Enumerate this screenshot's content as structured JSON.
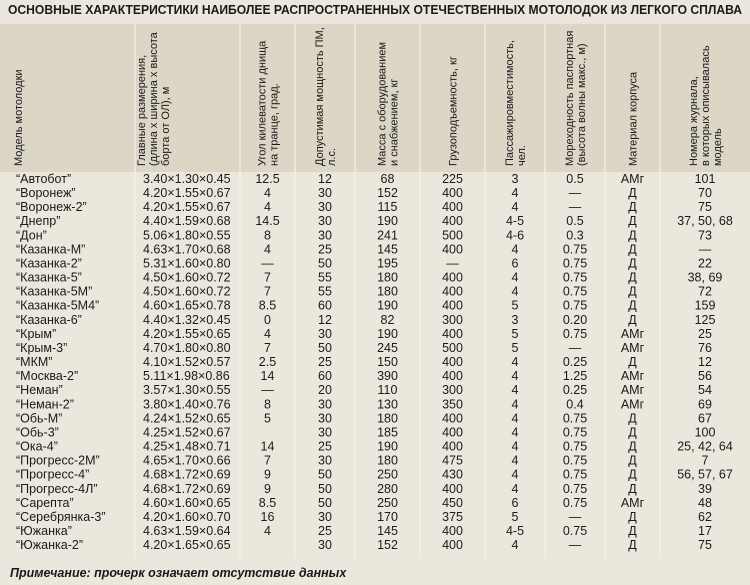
{
  "title": "ОСНОВНЫЕ ХАРАКТЕРИСТИКИ НАИБОЛЕЕ РАСПРОСТРАНЕННЫХ ОТЕЧЕСТВЕННЫХ МОТОЛОДОК ИЗ ЛЕГКОГО СПЛАВА",
  "table": {
    "columns": [
      [
        "Модель мотолодки"
      ],
      [
        "Главные размерения,",
        "(длина х ширина х высота",
        "борта от ОЛ), м"
      ],
      [
        "Угол килеватости днища",
        "на транце, град."
      ],
      [
        "Допустимая мощность ПМ,",
        "л.с."
      ],
      [
        "Масса с оборудованием",
        "и снабжением, кг"
      ],
      [
        "Грузоподъемность, кг"
      ],
      [
        "Пассажировместимость,",
        "чел."
      ],
      [
        "Мореходность паспортная",
        "(высота волны макс., м)"
      ],
      [
        "Материал корпуса"
      ],
      [
        "Номера журнала,",
        "в которых описывалась",
        "модель"
      ]
    ],
    "rows": [
      [
        "“Автобот”",
        "3.40×1.30×0.45",
        "12.5",
        "12",
        "68",
        "225",
        "3",
        "0.5",
        "АМг",
        "101"
      ],
      [
        "“Воронеж”",
        "4.20×1.55×0.67",
        "4",
        "30",
        "152",
        "400",
        "4",
        "—",
        "Д",
        "70"
      ],
      [
        "“Воронеж-2”",
        "4.20×1.55×0.67",
        "4",
        "30",
        "115",
        "400",
        "4",
        "—",
        "Д",
        "75"
      ],
      [
        "“Днепр”",
        "4.40×1.59×0.68",
        "14.5",
        "30",
        "190",
        "400",
        "4-5",
        "0.5",
        "Д",
        "37, 50, 68"
      ],
      [
        "“Дон”",
        "5.06×1.80×0.55",
        "8",
        "30",
        "241",
        "500",
        "4-6",
        "0.3",
        "Д",
        "73"
      ],
      [
        "“Казанка-М”",
        "4.63×1.70×0.68",
        "4",
        "25",
        "145",
        "400",
        "4",
        "0.75",
        "Д",
        "—"
      ],
      [
        "“Казанка-2”",
        "5.31×1.60×0.80",
        "—",
        "50",
        "195",
        "—",
        "6",
        "0.75",
        "Д",
        "22"
      ],
      [
        "“Казанка-5”",
        "4.50×1.60×0.72",
        "7",
        "55",
        "180",
        "400",
        "4",
        "0.75",
        "Д",
        "38, 69"
      ],
      [
        "“Казанка-5М”",
        "4.50×1.60×0.72",
        "7",
        "55",
        "180",
        "400",
        "4",
        "0.75",
        "Д",
        "72"
      ],
      [
        "“Казанка-5М4”",
        "4.60×1.65×0.78",
        "8.5",
        "60",
        "190",
        "400",
        "5",
        "0.75",
        "Д",
        "159"
      ],
      [
        "“Казанка-6”",
        "4.40×1.32×0.45",
        "0",
        "12",
        "82",
        "300",
        "3",
        "0.20",
        "Д",
        "125"
      ],
      [
        "“Крым”",
        "4.20×1.55×0.65",
        "4",
        "30",
        "190",
        "400",
        "5",
        "0.75",
        "АМг",
        "25"
      ],
      [
        "“Крым-3”",
        "4.70×1.80×0.80",
        "7",
        "50",
        "245",
        "500",
        "5",
        "—",
        "АМг",
        "76"
      ],
      [
        "“МКМ”",
        "4.10×1.52×0.57",
        "2.5",
        "25",
        "150",
        "400",
        "4",
        "0.25",
        "Д",
        "12"
      ],
      [
        "“Москва-2”",
        "5.11×1.98×0.86",
        "14",
        "60",
        "390",
        "400",
        "4",
        "1.25",
        "АМг",
        "56"
      ],
      [
        "“Неман”",
        "3.57×1.30×0.55",
        "—",
        "20",
        "110",
        "300",
        "4",
        "0.25",
        "АМг",
        "54"
      ],
      [
        "“Неман-2”",
        "3.80×1.40×0.76",
        "8",
        "30",
        "130",
        "350",
        "4",
        "0.4",
        "АМг",
        "69"
      ],
      [
        "“Обь-М”",
        "4.24×1.52×0.65",
        "5",
        "30",
        "180",
        "400",
        "4",
        "0.75",
        "Д",
        "67"
      ],
      [
        "“Обь-3”",
        "4.25×1.52×0.67",
        null,
        "30",
        "185",
        "400",
        "4",
        "0.75",
        "Д",
        "100"
      ],
      [
        "“Ока-4”",
        "4.25×1.48×0.71",
        "14",
        "25",
        "190",
        "400",
        "4",
        "0.75",
        "Д",
        "25, 42, 64"
      ],
      [
        "“Прогресс-2М”",
        "4.65×1.70×0.66",
        "7",
        "30",
        "180",
        "475",
        "4",
        "0.75",
        "Д",
        "7"
      ],
      [
        "“Прогресс-4”",
        "4.68×1.72×0.69",
        "9",
        "50",
        "250",
        "430",
        "4",
        "0.75",
        "Д",
        "56, 57, 67"
      ],
      [
        "“Прогресс-4Л”",
        "4.68×1.72×0.69",
        "9",
        "50",
        "280",
        "400",
        "4",
        "0.75",
        "Д",
        "39"
      ],
      [
        "“Сарепта”",
        "4.60×1.60×0.65",
        "8.5",
        "50",
        "250",
        "450",
        "6",
        "0.75",
        "АМг",
        "48"
      ],
      [
        "“Серебрянка-3”",
        "4.20×1.60×0.70",
        "16",
        "30",
        "170",
        "375",
        "5",
        "—",
        "Д",
        "62"
      ],
      [
        "“Южанка”",
        "4.63×1.59×0.64",
        "4",
        "25",
        "145",
        "400",
        "4-5",
        "0.75",
        "Д",
        "17"
      ],
      [
        "“Южанка-2”",
        "4.20×1.65×0.65",
        null,
        "30",
        "152",
        "400",
        "4",
        "—",
        "Д",
        "75"
      ]
    ]
  },
  "note": "Примечание: прочерк означает отсутствие данных"
}
